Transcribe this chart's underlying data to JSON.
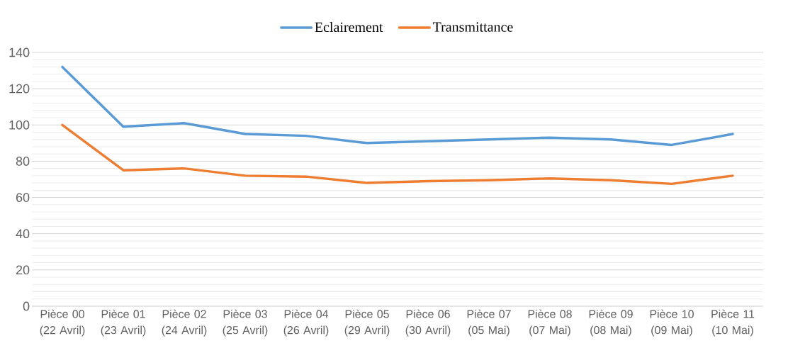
{
  "chart_data": {
    "type": "line",
    "categories": [
      "Pièce 00 (22 Avril)",
      "Pièce 01 (23 Avril)",
      "Pièce 02 (24 Avril)",
      "Pièce 03 (25 Avril)",
      "Pièce 04 (26 Avril)",
      "Pièce 05 (29 Avril)",
      "Pièce 06 (30 Avril)",
      "Pièce 07 (05 Mai)",
      "Pièce 08 (07 Mai)",
      "Pièce 09 (08 Mai)",
      "Pièce 10 (09 Mai)",
      "Pièce 11 (10 Mai)"
    ],
    "series": [
      {
        "name": "Eclairement",
        "color": "#5b9bd5",
        "values": [
          132,
          99,
          101,
          95,
          94,
          90,
          91,
          92,
          93,
          92,
          89,
          95
        ]
      },
      {
        "name": "Transmittance",
        "color": "#ed7d31",
        "values": [
          100,
          75,
          76,
          72,
          71.5,
          68,
          69,
          69.5,
          70.5,
          69.5,
          67.5,
          72
        ]
      }
    ],
    "ylim": [
      0,
      140
    ],
    "yticks": [
      0,
      20,
      40,
      60,
      80,
      100,
      120,
      140
    ],
    "grid": "y",
    "legend": "top"
  }
}
